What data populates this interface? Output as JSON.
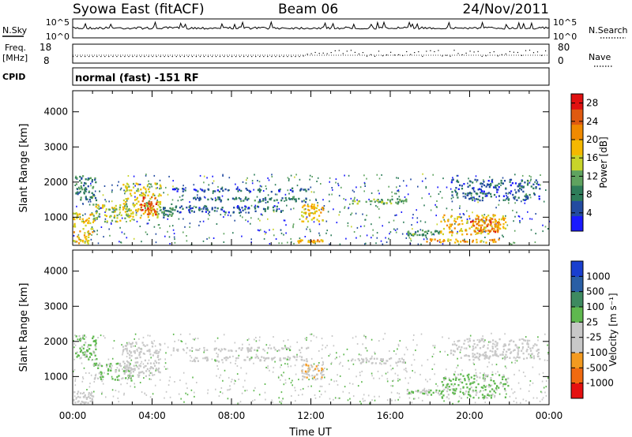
{
  "header": {
    "title": "Syowa East (fitACF)",
    "beam": "Beam 06",
    "date": "24/Nov/2011"
  },
  "nsky": {
    "label": "N.Sky",
    "tick_top": "10^5",
    "tick_bottom": "10^0"
  },
  "nsearch": {
    "label": "N.Search",
    "tick_top": "10^5",
    "tick_bottom": "10^0"
  },
  "freq": {
    "label_line1": "Freq.",
    "label_line2": "[MHz]",
    "tick_top": "18",
    "tick_bottom": "8"
  },
  "nave": {
    "label": "Nave",
    "tick_top": "80",
    "tick_bottom": "0"
  },
  "cpid": {
    "label": "CPID",
    "value": "normal (fast) -151 RF"
  },
  "colors": {
    "power": [
      "#1a1aff",
      "#234ba0",
      "#2e7d5a",
      "#5fa35f",
      "#c8d42a",
      "#f5b800",
      "#f08a00",
      "#e05a10",
      "#e01010"
    ],
    "velocity": [
      "#e51010",
      "#f06a10",
      "#f39a20",
      "#c8c8c8",
      "#c8c8c8",
      "#5fb84f",
      "#3e8a60",
      "#2a5fa5",
      "#1a3fcf"
    ]
  },
  "chart_data": [
    {
      "type": "heatmap",
      "quantity": "Power",
      "xlabel": "",
      "ylabel": "Slant Range [km]",
      "ylim": [
        200,
        4600
      ],
      "yticks": [
        "1000",
        "2000",
        "3000",
        "4000"
      ],
      "xticks": [],
      "colorbar": {
        "label": "Power [dB]",
        "ticks": [
          "4",
          "8",
          "12",
          "16",
          "20",
          "24",
          "28"
        ],
        "range": [
          0,
          30
        ]
      },
      "regions": [
        {
          "t0": 0.0,
          "t1": 1.0,
          "r0": 250,
          "r1": 1150,
          "v": 18
        },
        {
          "t0": 0.1,
          "t1": 1.2,
          "r0": 1500,
          "r1": 2200,
          "v": 8
        },
        {
          "t0": 1.0,
          "t1": 3.0,
          "r0": 900,
          "r1": 1400,
          "v": 14
        },
        {
          "t0": 2.5,
          "t1": 4.4,
          "r0": 1000,
          "r1": 2000,
          "v": 16
        },
        {
          "t0": 3.4,
          "t1": 4.2,
          "r0": 1100,
          "r1": 1600,
          "v": 26
        },
        {
          "t0": 4.4,
          "t1": 5.0,
          "r0": 1000,
          "r1": 1300,
          "v": 8
        },
        {
          "t0": 5.0,
          "t1": 12.0,
          "r0": 1750,
          "r1": 1850,
          "v": 6
        },
        {
          "t0": 6.0,
          "t1": 11.8,
          "r0": 1450,
          "r1": 1600,
          "v": 7
        },
        {
          "t0": 5.0,
          "t1": 10.5,
          "r0": 1150,
          "r1": 1350,
          "v": 6
        },
        {
          "t0": 11.5,
          "t1": 12.6,
          "r0": 900,
          "r1": 1400,
          "v": 18
        },
        {
          "t0": 11.2,
          "t1": 12.8,
          "r0": 300,
          "r1": 380,
          "v": 20
        },
        {
          "t0": 14.0,
          "t1": 16.8,
          "r0": 1400,
          "r1": 1550,
          "v": 12
        },
        {
          "t0": 16.8,
          "t1": 18.5,
          "r0": 500,
          "r1": 650,
          "v": 10
        },
        {
          "t0": 17.5,
          "t1": 21.5,
          "r0": 300,
          "r1": 400,
          "v": 20
        },
        {
          "t0": 18.5,
          "t1": 21.8,
          "r0": 500,
          "r1": 1100,
          "v": 18
        },
        {
          "t0": 20.0,
          "t1": 21.5,
          "r0": 600,
          "r1": 1000,
          "v": 24
        },
        {
          "t0": 19.0,
          "t1": 23.5,
          "r0": 1500,
          "r1": 2100,
          "v": 6
        }
      ]
    },
    {
      "type": "heatmap",
      "quantity": "Velocity",
      "xlabel": "Time UT",
      "ylabel": "Slant Range [km]",
      "ylim": [
        200,
        4600
      ],
      "yticks": [
        "1000",
        "2000",
        "3000",
        "4000"
      ],
      "xticks": [
        "00:00",
        "04:00",
        "08:00",
        "12:00",
        "16:00",
        "20:00",
        "00:00"
      ],
      "colorbar": {
        "label": "Velocity [m s⁻¹]",
        "ticks": [
          "-1000",
          "-500",
          "-100",
          "-25",
          "25",
          "100",
          "500",
          "1000"
        ],
        "range": [
          -1200,
          1200
        ]
      },
      "regions": [
        {
          "t0": 0.0,
          "t1": 1.0,
          "r0": 250,
          "r1": 600,
          "v": -150
        },
        {
          "t0": 0.1,
          "t1": 1.2,
          "r0": 1500,
          "r1": 2200,
          "v": 200
        },
        {
          "t0": 1.0,
          "t1": 3.0,
          "r0": 900,
          "r1": 1400,
          "v": 150
        },
        {
          "t0": 2.5,
          "t1": 4.4,
          "r0": 1000,
          "r1": 2000,
          "v": -200
        },
        {
          "t0": 5.0,
          "t1": 12.0,
          "r0": 1750,
          "r1": 1850,
          "v": 0
        },
        {
          "t0": 6.0,
          "t1": 11.8,
          "r0": 1450,
          "r1": 1600,
          "v": 0
        },
        {
          "t0": 11.5,
          "t1": 12.6,
          "r0": 900,
          "r1": 1400,
          "v": -400
        },
        {
          "t0": 14.0,
          "t1": 16.8,
          "r0": 1400,
          "r1": 1550,
          "v": 0
        },
        {
          "t0": 16.8,
          "t1": 18.5,
          "r0": 500,
          "r1": 650,
          "v": 150
        },
        {
          "t0": 18.5,
          "t1": 22.0,
          "r0": 400,
          "r1": 1100,
          "v": 200
        },
        {
          "t0": 19.0,
          "t1": 23.5,
          "r0": 1500,
          "r1": 2100,
          "v": -60
        }
      ]
    }
  ]
}
